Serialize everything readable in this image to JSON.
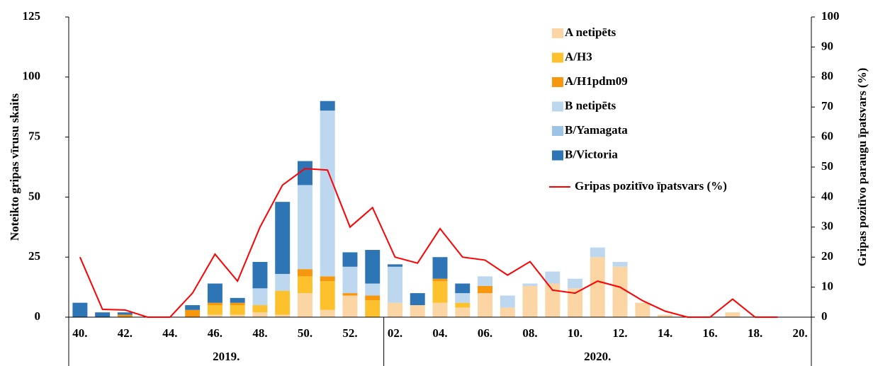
{
  "chart_data": {
    "type": "bar",
    "stacked": true,
    "y_label": "Noteikto gripas vīrusu skaits",
    "y2_label": "Gripas pozitīvo paraugu īpatsvars (%)",
    "categories": [
      "40.",
      null,
      "42.",
      null,
      "44.",
      null,
      "46.",
      null,
      "48.",
      null,
      "50.",
      null,
      "52.",
      null,
      "02.",
      null,
      "04.",
      null,
      "06.",
      null,
      "08.",
      null,
      "10.",
      null,
      "12.",
      null,
      "14.",
      null,
      "16.",
      null,
      "18.",
      null,
      "20."
    ],
    "year_groups": [
      {
        "label": "2019.",
        "span": 14
      },
      {
        "label": "2020.",
        "span": 19
      }
    ],
    "ylim": [
      0,
      125
    ],
    "yticks": [
      0,
      25,
      50,
      75,
      100,
      125
    ],
    "y2lim": [
      0,
      100
    ],
    "y2ticks": [
      0,
      10,
      20,
      30,
      40,
      50,
      60,
      70,
      80,
      90,
      100
    ],
    "legend": "top-right",
    "series": [
      {
        "name": "A netipēts",
        "color": "#fcd5a5",
        "values": [
          0,
          0,
          0,
          0,
          0,
          0,
          1,
          1,
          2,
          1,
          10,
          3,
          9,
          0,
          6,
          5,
          6,
          4,
          10,
          4,
          13,
          14,
          12,
          25,
          21,
          6,
          1,
          0,
          0,
          2,
          0,
          0,
          0
        ]
      },
      {
        "name": "A/H3",
        "color": "#fcc12c",
        "values": [
          0,
          0,
          0,
          0,
          0,
          0,
          4,
          4,
          3,
          10,
          7,
          12,
          0,
          7,
          0,
          0,
          9,
          2,
          0,
          0,
          0,
          0,
          0,
          0,
          0,
          0,
          0,
          0,
          0,
          0,
          0,
          0,
          0
        ]
      },
      {
        "name": "A/H1pdm09",
        "color": "#f7970e",
        "values": [
          0,
          0,
          1,
          0,
          0,
          3,
          1,
          1,
          0,
          0,
          3,
          2,
          1,
          2,
          0,
          0,
          1,
          0,
          3,
          0,
          0,
          0,
          0,
          0,
          0,
          0,
          0,
          0,
          0,
          0,
          0,
          0,
          0
        ]
      },
      {
        "name": "B netipēts",
        "color": "#bdd7ee",
        "values": [
          0,
          0,
          0,
          0,
          0,
          0,
          0,
          0,
          7,
          7,
          35,
          69,
          11,
          5,
          15,
          0,
          0,
          4,
          4,
          5,
          1,
          5,
          4,
          4,
          2,
          0,
          0,
          0,
          0,
          0,
          0,
          0,
          0
        ]
      },
      {
        "name": "B/Yamagata",
        "color": "#9dc3e6",
        "values": [
          0,
          0,
          0,
          0,
          0,
          0,
          0,
          0,
          0,
          0,
          0,
          0,
          0,
          0,
          0,
          0,
          0,
          0,
          0,
          0,
          0,
          0,
          0,
          0,
          0,
          0,
          0,
          0,
          0,
          0,
          0,
          0,
          0
        ]
      },
      {
        "name": "B/Victoria",
        "color": "#2e75b6",
        "values": [
          6,
          2,
          1,
          0,
          0,
          2,
          8,
          2,
          11,
          30,
          10,
          4,
          6,
          14,
          1,
          5,
          9,
          4,
          0,
          0,
          0,
          0,
          0,
          0,
          0,
          0,
          0,
          0,
          0,
          0,
          0,
          0,
          0
        ]
      },
      {
        "name": "Gripas pozitīvo īpatsvars (%)",
        "type": "line",
        "axis": "y2",
        "color": "#ff0000",
        "values": [
          20,
          2.6,
          2.4,
          0,
          0,
          8,
          21,
          12,
          30,
          44,
          49.5,
          49,
          30,
          36.5,
          20,
          18,
          29.5,
          20,
          19,
          14,
          18.5,
          9,
          8,
          12,
          10,
          5.5,
          2,
          0,
          0,
          6,
          0,
          0,
          null
        ]
      }
    ]
  }
}
